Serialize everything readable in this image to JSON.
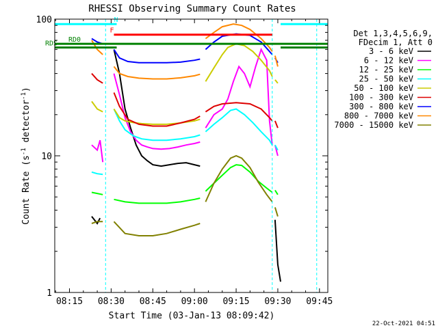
{
  "chart_data": {
    "type": "line",
    "title": "RHESSI Observing Summary Count Rates",
    "xlabel": "Start Time (03-Jan-13 08:09:42)",
    "ylabel_main": "Count Rate (s",
    "ylabel_sup": "-1",
    "ylabel_mid": " detector",
    "ylabel_tail": ")",
    "xscale": "time",
    "yscale": "log",
    "xlim": [
      "08:09:42",
      "09:48:00"
    ],
    "ylim": [
      1,
      100
    ],
    "x_ticks": [
      "08:15",
      "08:30",
      "08:45",
      "09:00",
      "09:15",
      "09:30",
      "09:45"
    ],
    "y_ticks": [
      "1",
      "10",
      "100"
    ],
    "legend": {
      "header": [
        "Det 1,3,4,5,6,9,",
        "FDecim 1, Att 0"
      ],
      "position": "right",
      "entries": [
        {
          "name": "3 - 6 keV",
          "color": "#000000"
        },
        {
          "name": "6 - 12 keV",
          "color": "#ff00ff"
        },
        {
          "name": "12 - 25 keV",
          "color": "#00ff00"
        },
        {
          "name": "25 - 50 keV",
          "color": "#00ffff"
        },
        {
          "name": "50 - 100 keV",
          "color": "#cccc00"
        },
        {
          "name": "100 - 300 keV",
          "color": "#dd0000"
        },
        {
          "name": "300 - 800 keV",
          "color": "#0000ff"
        },
        {
          "name": "800 - 7000 keV",
          "color": "#ff8800"
        },
        {
          "name": "7000 - 15000 keV",
          "color": "#808000"
        }
      ]
    },
    "series": [
      {
        "name": "3 - 6 keV",
        "color": "#000000",
        "segments": [
          [
            [
              "08:23",
              3.6
            ],
            [
              "08:25",
              3.2
            ],
            [
              "08:26",
              3.5
            ]
          ],
          [
            [
              "08:31",
              60
            ],
            [
              "08:33",
              40
            ],
            [
              "08:35",
              22
            ],
            [
              "08:37",
              16
            ],
            [
              "08:39",
              12
            ],
            [
              "08:41",
              10
            ],
            [
              "08:43",
              9.2
            ],
            [
              "08:45",
              8.6
            ],
            [
              "08:48",
              8.4
            ],
            [
              "08:51",
              8.6
            ],
            [
              "08:54",
              8.8
            ],
            [
              "08:57",
              8.9
            ],
            [
              "09:00",
              8.6
            ],
            [
              "09:02",
              8.4
            ]
          ],
          [
            [
              "09:29",
              3.4
            ],
            [
              "09:30",
              1.6
            ],
            [
              "09:31",
              1.2
            ]
          ]
        ]
      },
      {
        "name": "6 - 12 keV",
        "color": "#ff00ff",
        "segments": [
          [
            [
              "08:23",
              12
            ],
            [
              "08:25",
              11
            ],
            [
              "08:26",
              13
            ],
            [
              "08:27",
              9
            ]
          ],
          [
            [
              "08:31",
              40
            ],
            [
              "08:33",
              28
            ],
            [
              "08:35",
              19
            ],
            [
              "08:37",
              15
            ],
            [
              "08:39",
              13
            ],
            [
              "08:41",
              12
            ],
            [
              "08:43",
              11.6
            ],
            [
              "08:45",
              11.3
            ],
            [
              "08:48",
              11.2
            ],
            [
              "08:51",
              11.3
            ],
            [
              "08:54",
              11.6
            ],
            [
              "08:57",
              12
            ],
            [
              "09:00",
              12.3
            ],
            [
              "09:02",
              12.6
            ]
          ],
          [
            [
              "09:04",
              16
            ],
            [
              "09:07",
              20
            ],
            [
              "09:10",
              22
            ],
            [
              "09:12",
              26
            ],
            [
              "09:14",
              35
            ],
            [
              "09:16",
              45
            ],
            [
              "09:18",
              40
            ],
            [
              "09:20",
              32
            ],
            [
              "09:22",
              45
            ],
            [
              "09:24",
              60
            ],
            [
              "09:26",
              50
            ],
            [
              "09:27",
              18
            ],
            [
              "09:28",
              12
            ]
          ],
          [
            [
              "09:29",
              12
            ],
            [
              "09:30",
              10
            ]
          ]
        ]
      },
      {
        "name": "12 - 25 keV",
        "color": "#00ff00",
        "segments": [
          [
            [
              "08:23",
              5.4
            ],
            [
              "08:25",
              5.3
            ],
            [
              "08:27",
              5.2
            ]
          ],
          [
            [
              "08:31",
              4.8
            ],
            [
              "08:35",
              4.6
            ],
            [
              "08:40",
              4.5
            ],
            [
              "08:45",
              4.5
            ],
            [
              "08:50",
              4.5
            ],
            [
              "08:55",
              4.6
            ],
            [
              "09:00",
              4.8
            ],
            [
              "09:02",
              4.9
            ]
          ],
          [
            [
              "09:04",
              5.5
            ],
            [
              "09:07",
              6.3
            ],
            [
              "09:10",
              7.2
            ],
            [
              "09:13",
              8.2
            ],
            [
              "09:15",
              8.6
            ],
            [
              "09:17",
              8.5
            ],
            [
              "09:20",
              7.6
            ],
            [
              "09:23",
              6.5
            ],
            [
              "09:26",
              5.8
            ],
            [
              "09:28",
              5.4
            ]
          ],
          [
            [
              "09:29",
              5.6
            ],
            [
              "09:30",
              5.2
            ]
          ]
        ]
      },
      {
        "name": "25 - 50 keV",
        "color": "#00ffff",
        "segments": [
          [
            [
              "08:23",
              7.6
            ],
            [
              "08:25",
              7.4
            ],
            [
              "08:27",
              7.3
            ]
          ],
          [
            [
              "08:31",
              22
            ],
            [
              "08:33",
              18
            ],
            [
              "08:35",
              15.5
            ],
            [
              "08:38",
              14
            ],
            [
              "08:41",
              13.3
            ],
            [
              "08:45",
              13
            ],
            [
              "08:50",
              13
            ],
            [
              "08:55",
              13.3
            ],
            [
              "09:00",
              13.8
            ],
            [
              "09:02",
              14.2
            ]
          ],
          [
            [
              "09:04",
              15
            ],
            [
              "09:07",
              17
            ],
            [
              "09:10",
              19
            ],
            [
              "09:13",
              21.5
            ],
            [
              "09:15",
              22
            ],
            [
              "09:18",
              20
            ],
            [
              "09:21",
              17.5
            ],
            [
              "09:24",
              15
            ],
            [
              "09:27",
              13
            ],
            [
              "09:28",
              12
            ]
          ],
          [
            [
              "09:29",
              12
            ],
            [
              "09:30",
              11
            ]
          ]
        ]
      },
      {
        "name": "50 - 100 keV",
        "color": "#cccc00",
        "segments": [
          [
            [
              "08:23",
              25
            ],
            [
              "08:25",
              22
            ],
            [
              "08:27",
              21
            ]
          ],
          [
            [
              "08:31",
              22
            ],
            [
              "08:33",
              19
            ],
            [
              "08:35",
              18
            ],
            [
              "08:38",
              17.5
            ],
            [
              "08:41",
              17.2
            ],
            [
              "08:45",
              17
            ],
            [
              "08:50",
              17
            ],
            [
              "08:55",
              17.4
            ],
            [
              "09:00",
              18
            ],
            [
              "09:02",
              18.5
            ]
          ],
          [
            [
              "09:04",
              35
            ],
            [
              "09:07",
              44
            ],
            [
              "09:10",
              55
            ],
            [
              "09:12",
              62
            ],
            [
              "09:15",
              66
            ],
            [
              "09:18",
              64
            ],
            [
              "09:21",
              58
            ],
            [
              "09:24",
              50
            ],
            [
              "09:27",
              42
            ],
            [
              "09:28",
              38
            ]
          ],
          [
            [
              "09:29",
              36
            ],
            [
              "09:30",
              34
            ]
          ]
        ]
      },
      {
        "name": "100 - 300 keV",
        "color": "#dd0000",
        "segments": [
          [
            [
              "08:23",
              40
            ],
            [
              "08:25",
              36
            ],
            [
              "08:27",
              34
            ]
          ],
          [
            [
              "08:31",
              29
            ],
            [
              "08:33",
              23
            ],
            [
              "08:36",
              18.5
            ],
            [
              "08:40",
              17
            ],
            [
              "08:45",
              16.5
            ],
            [
              "08:50",
              16.5
            ],
            [
              "08:55",
              17.4
            ],
            [
              "09:00",
              18.5
            ],
            [
              "09:02",
              19.5
            ]
          ],
          [
            [
              "09:04",
              21
            ],
            [
              "09:07",
              23
            ],
            [
              "09:10",
              24
            ],
            [
              "09:15",
              24.5
            ],
            [
              "09:20",
              24
            ],
            [
              "09:24",
              22
            ],
            [
              "09:27",
              19
            ],
            [
              "09:28",
              18
            ]
          ],
          [
            [
              "09:29",
              18
            ],
            [
              "09:30",
              16
            ]
          ]
        ]
      },
      {
        "name": "300 - 800 keV",
        "color": "#0000ff",
        "segments": [
          [
            [
              "08:23",
              72
            ],
            [
              "08:25",
              68
            ],
            [
              "08:27",
              66
            ]
          ],
          [
            [
              "08:31",
              60
            ],
            [
              "08:33",
              52
            ],
            [
              "08:36",
              49
            ],
            [
              "08:40",
              48
            ],
            [
              "08:45",
              48
            ],
            [
              "08:50",
              48
            ],
            [
              "08:55",
              48.5
            ],
            [
              "09:00",
              50
            ],
            [
              "09:02",
              51
            ]
          ],
          [
            [
              "09:04",
              60
            ],
            [
              "09:07",
              68
            ],
            [
              "09:10",
              75
            ],
            [
              "09:15",
              78
            ],
            [
              "09:20",
              76
            ],
            [
              "09:24",
              68
            ],
            [
              "09:27",
              58
            ],
            [
              "09:28",
              55
            ]
          ],
          [
            [
              "09:29",
              52
            ],
            [
              "09:30",
              48
            ]
          ]
        ]
      },
      {
        "name": "800 - 7000 keV",
        "color": "#ff8800",
        "segments": [
          [
            [
              "08:23",
              70
            ],
            [
              "08:25",
              60
            ],
            [
              "08:27",
              55
            ]
          ],
          [
            [
              "08:31",
              45
            ],
            [
              "08:33",
              40
            ],
            [
              "08:36",
              38
            ],
            [
              "08:40",
              37
            ],
            [
              "08:45",
              36.5
            ],
            [
              "08:50",
              36.5
            ],
            [
              "08:55",
              37.2
            ],
            [
              "09:00",
              38.5
            ],
            [
              "09:02",
              39.5
            ]
          ],
          [
            [
              "09:04",
              72
            ],
            [
              "09:07",
              80
            ],
            [
              "09:10",
              88
            ],
            [
              "09:14",
              92
            ],
            [
              "09:17",
              90
            ],
            [
              "09:20",
              84
            ],
            [
              "09:24",
              72
            ],
            [
              "09:27",
              62
            ],
            [
              "09:28",
              58
            ]
          ],
          [
            [
              "09:29",
              54
            ],
            [
              "09:30",
              45
            ]
          ]
        ]
      },
      {
        "name": "7000 - 15000 keV",
        "color": "#808000",
        "segments": [
          [
            [
              "08:23",
              3.2
            ],
            [
              "08:25",
              3.3
            ],
            [
              "08:27",
              3.3
            ]
          ],
          [
            [
              "08:31",
              3.3
            ],
            [
              "08:35",
              2.7
            ],
            [
              "08:40",
              2.6
            ],
            [
              "08:45",
              2.6
            ],
            [
              "08:50",
              2.7
            ],
            [
              "08:55",
              2.9
            ],
            [
              "09:00",
              3.1
            ],
            [
              "09:02",
              3.2
            ]
          ],
          [
            [
              "09:04",
              4.6
            ],
            [
              "09:07",
              6.3
            ],
            [
              "09:10",
              8
            ],
            [
              "09:13",
              9.6
            ],
            [
              "09:15",
              10
            ],
            [
              "09:17",
              9.6
            ],
            [
              "09:20",
              8.2
            ],
            [
              "09:23",
              6.4
            ],
            [
              "09:26",
              5.2
            ],
            [
              "09:28",
              4.6
            ]
          ],
          [
            [
              "09:29",
              4.2
            ],
            [
              "09:30",
              3.6
            ]
          ]
        ]
      }
    ],
    "status_bars": [
      {
        "label": "N",
        "color": "#00ffff",
        "value": 92,
        "ranges": [
          [
            "08:09:42",
            "08:32"
          ],
          [
            "09:31",
            "09:48"
          ]
        ]
      },
      {
        "label": "F",
        "color": "#ff0000",
        "value": 77,
        "ranges": [
          [
            "08:31",
            "09:28"
          ]
        ]
      },
      {
        "label": "RD0",
        "color": "#008000",
        "value": 66,
        "ranges": [
          [
            "08:09:42",
            "09:48"
          ]
        ]
      },
      {
        "label": "RDS",
        "color": "#008000",
        "value": 62,
        "ranges": [
          [
            "08:09:42",
            "08:32"
          ],
          [
            "09:31",
            "09:48"
          ]
        ]
      }
    ],
    "dashed_verticals": [
      {
        "color": "#00ffff",
        "x": [
          "08:28",
          "09:28",
          "09:44"
        ]
      }
    ],
    "footer_timestamp": "22-Oct-2021 04:51"
  }
}
